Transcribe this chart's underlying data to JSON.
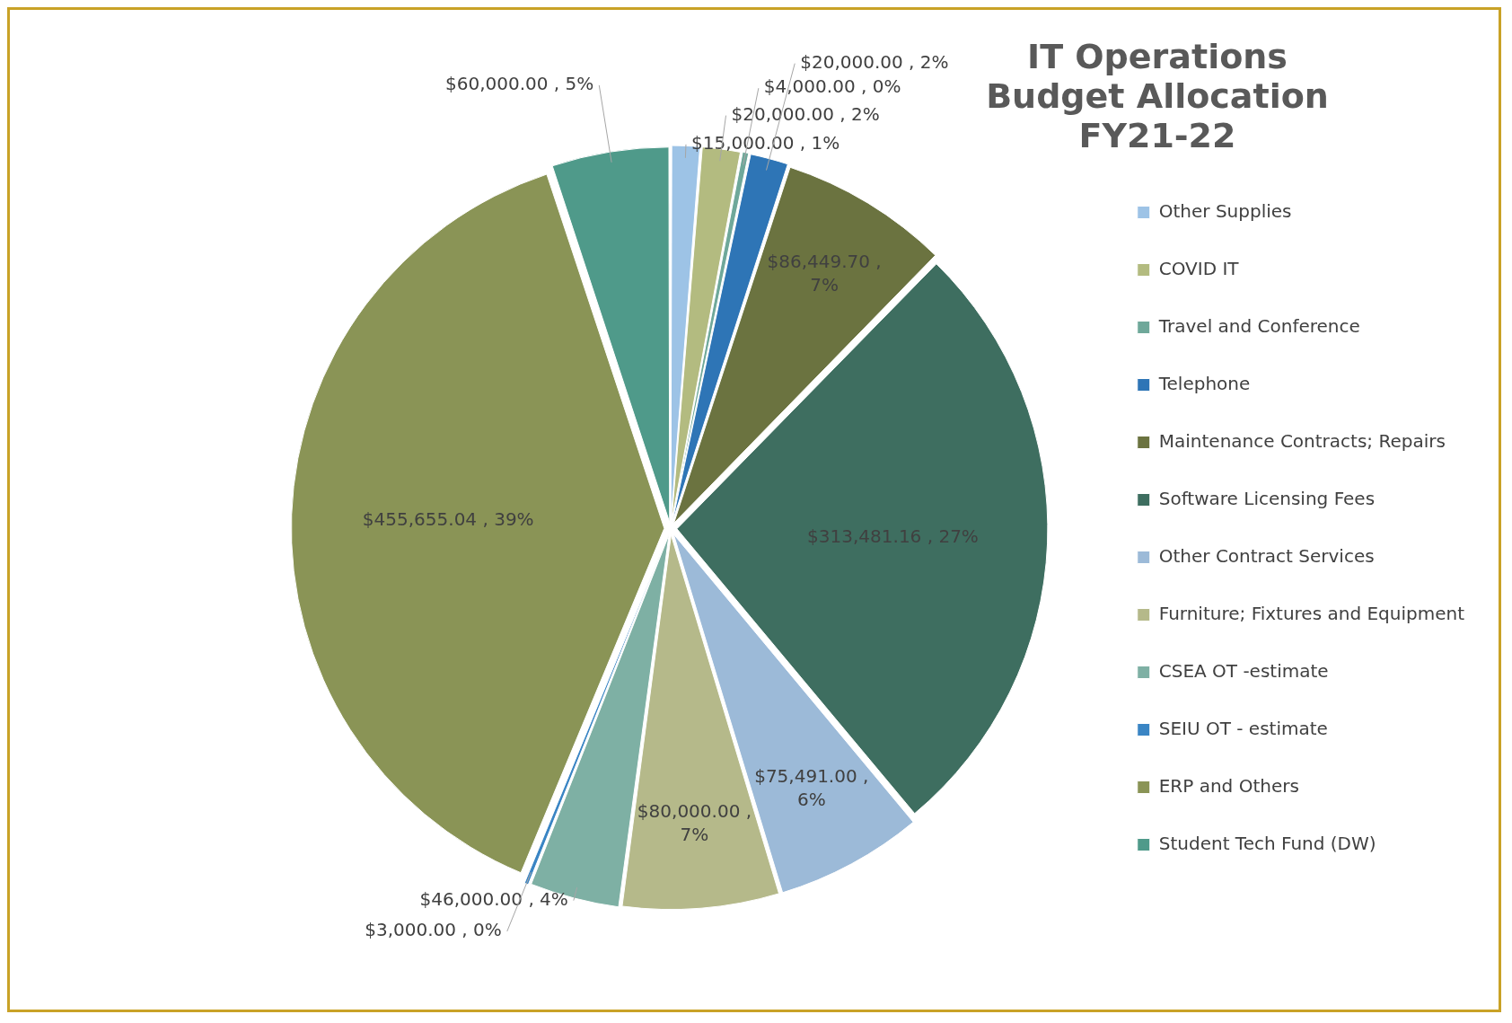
{
  "chart_data": {
    "type": "pie",
    "title": "IT Operations Budget Allocation FY21-22",
    "categories": [
      "Other Supplies",
      "COVID IT",
      "Travel and Conference",
      "Telephone",
      "Maintenance Contracts; Repairs",
      "Software Licensing Fees",
      "Other Contract Services",
      "Furniture; Fixtures and Equipment",
      "CSEA OT -estimate",
      "SEIU OT - estimate",
      "ERP and Others",
      "Student Tech Fund (DW)"
    ],
    "values": [
      15000,
      20000,
      4000,
      20000,
      86449.7,
      313481.16,
      75491.0,
      80000,
      46000,
      3000,
      455655.04,
      60000
    ],
    "value_labels": [
      "$15,000.00 , 1%",
      "$20,000.00 , 2%",
      "$4,000.00 , 0%",
      "$20,000.00 , 2%",
      "$86,449.70 , 7%",
      "$313,481.16 , 27%",
      "$75,491.00 , 6%",
      "$80,000.00 , 7%",
      "$46,000.00 , 4%",
      "$3,000.00 , 0%",
      "$455,655.04 , 39%",
      "$60,000.00 , 5%"
    ],
    "colors": [
      "#9dc3e6",
      "#b3bb80",
      "#6fa89a",
      "#2e75b6",
      "#6b7340",
      "#3e6e60",
      "#9cbad8",
      "#b5b98a",
      "#7eb0a4",
      "#3a85c4",
      "#8a9456",
      "#4f9a8a"
    ],
    "legend": "right"
  }
}
